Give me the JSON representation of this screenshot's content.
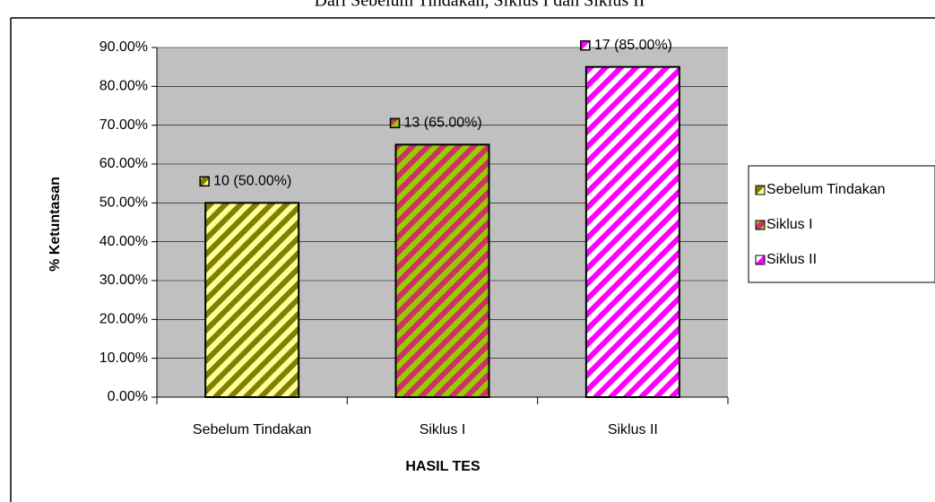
{
  "chart_data": {
    "type": "bar",
    "title": "Dari Sebelum Tindakan, Siklus I dan Siklus II",
    "xlabel": "HASIL TES",
    "ylabel": "% Ketuntasan",
    "categories": [
      "Sebelum Tindakan",
      "Siklus I",
      "Siklus II"
    ],
    "values": [
      50,
      65,
      85
    ],
    "value_labels": [
      "10 (50.00%)",
      "13 (65.00%)",
      "17 (85.00%)"
    ],
    "colors": [
      [
        "#808000",
        "#ffff99"
      ],
      [
        "#99cc00",
        "#cc3366"
      ],
      [
        "#ff00ff",
        "#ffffff"
      ]
    ],
    "ylim": [
      0,
      90
    ],
    "yticks": [
      {
        "value": 0,
        "label": "0.00%"
      },
      {
        "value": 10,
        "label": "10.00%"
      },
      {
        "value": 20,
        "label": "20.00%"
      },
      {
        "value": 30,
        "label": "30.00%"
      },
      {
        "value": 40,
        "label": "40.00%"
      },
      {
        "value": 50,
        "label": "50.00%"
      },
      {
        "value": 60,
        "label": "60.00%"
      },
      {
        "value": 70,
        "label": "70.00%"
      },
      {
        "value": 80,
        "label": "80.00%"
      },
      {
        "value": 90,
        "label": "90.00%"
      }
    ],
    "grid": true,
    "legend": "right"
  }
}
